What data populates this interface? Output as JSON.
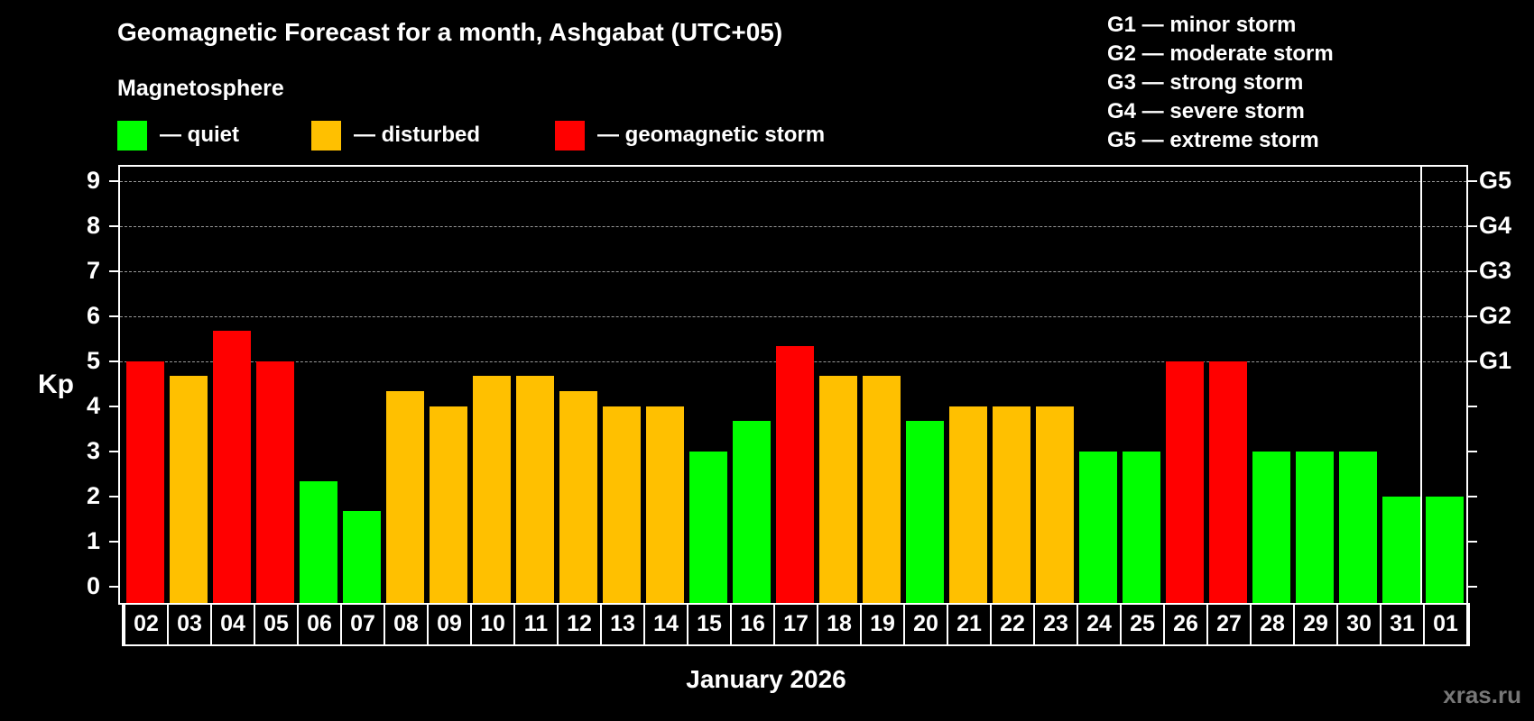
{
  "title": "Geomagnetic Forecast for a month, Ashgabat (UTC+05)",
  "legend": {
    "title": "Magnetosphere",
    "items": [
      {
        "label": "— quiet",
        "color": "#00ff00"
      },
      {
        "label": "— disturbed",
        "color": "#ffc000"
      },
      {
        "label": "— geomagnetic storm",
        "color": "#ff0000"
      }
    ]
  },
  "storm_scale": [
    "G1 — minor storm",
    "G2 — moderate storm",
    "G3 — strong storm",
    "G4 — severe storm",
    "G5 — extreme storm"
  ],
  "y_axis": {
    "label": "Kp",
    "ticks": [
      "0",
      "1",
      "2",
      "3",
      "4",
      "5",
      "6",
      "7",
      "8",
      "9"
    ]
  },
  "right_axis": {
    "labels": [
      {
        "kp": 5,
        "label": "G1"
      },
      {
        "kp": 6,
        "label": "G2"
      },
      {
        "kp": 7,
        "label": "G3"
      },
      {
        "kp": 8,
        "label": "G4"
      },
      {
        "kp": 9,
        "label": "G5"
      }
    ]
  },
  "x_axis": {
    "label": "January 2026"
  },
  "watermark": "xras.ru",
  "colors": {
    "quiet": "#00ff00",
    "disturbed": "#ffc000",
    "storm": "#ff0000",
    "background": "#000000",
    "grid": "#999999"
  },
  "chart_data": {
    "type": "bar",
    "title": "Geomagnetic Forecast for a month, Ashgabat (UTC+05)",
    "xlabel": "January 2026",
    "ylabel": "Kp",
    "ylim": [
      0,
      9
    ],
    "grid": "dashed horizontal at Kp 5-9",
    "legend": [
      "quiet",
      "disturbed",
      "geomagnetic storm"
    ],
    "categories": [
      "02",
      "03",
      "04",
      "05",
      "06",
      "07",
      "08",
      "09",
      "10",
      "11",
      "12",
      "13",
      "14",
      "15",
      "16",
      "17",
      "18",
      "19",
      "20",
      "21",
      "22",
      "23",
      "24",
      "25",
      "26",
      "27",
      "28",
      "29",
      "30",
      "31",
      "01"
    ],
    "values": [
      5.0,
      4.67,
      5.67,
      5.0,
      2.33,
      1.67,
      4.33,
      4.0,
      4.67,
      4.67,
      4.33,
      4.0,
      4.0,
      3.0,
      3.67,
      5.33,
      4.67,
      4.67,
      3.67,
      4.0,
      4.0,
      4.0,
      3.0,
      3.0,
      5.0,
      5.0,
      3.0,
      3.0,
      3.0,
      2.0,
      2.0
    ],
    "status": [
      "storm",
      "disturbed",
      "storm",
      "storm",
      "quiet",
      "quiet",
      "disturbed",
      "disturbed",
      "disturbed",
      "disturbed",
      "disturbed",
      "disturbed",
      "disturbed",
      "quiet",
      "quiet",
      "storm",
      "disturbed",
      "disturbed",
      "quiet",
      "disturbed",
      "disturbed",
      "disturbed",
      "quiet",
      "quiet",
      "storm",
      "storm",
      "quiet",
      "quiet",
      "quiet",
      "quiet",
      "quiet"
    ],
    "right_axis_labels": {
      "5": "G1",
      "6": "G2",
      "7": "G3",
      "8": "G4",
      "9": "G5"
    }
  }
}
